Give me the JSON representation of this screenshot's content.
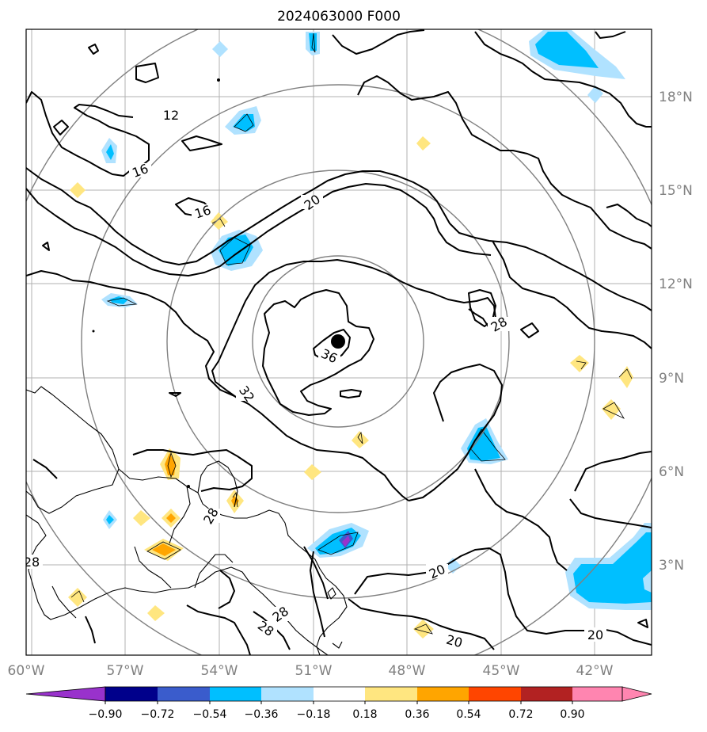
{
  "title": "2024063000 F000",
  "axes": {
    "x_ticks": [
      "60°W",
      "57°W",
      "54°W",
      "51°W",
      "48°W",
      "45°W",
      "42°W"
    ],
    "y_ticks": [
      "18°N",
      "15°N",
      "12°N",
      "9°N",
      "6°N",
      "3°N"
    ]
  },
  "colorbar": {
    "ticks": [
      "−0.90",
      "−0.72",
      "−0.54",
      "−0.36",
      "−0.18",
      "0.18",
      "0.36",
      "0.54",
      "0.72",
      "0.90"
    ],
    "colors": [
      "#9932cc",
      "#00008b",
      "#3a5ccc",
      "#00bfff",
      "#b0e2ff",
      "#ffffff",
      "#ffe680",
      "#ffa500",
      "#ff4500",
      "#b22222",
      "#ff85b0"
    ],
    "extend": "both"
  },
  "contour_labels": [
    "12",
    "16",
    "16",
    "20",
    "20",
    "20",
    "20",
    "28",
    "28",
    "28",
    "28",
    "28",
    "32",
    "36"
  ],
  "features": {
    "storm_center_icon": "filled-circle",
    "range_rings": 4
  }
}
